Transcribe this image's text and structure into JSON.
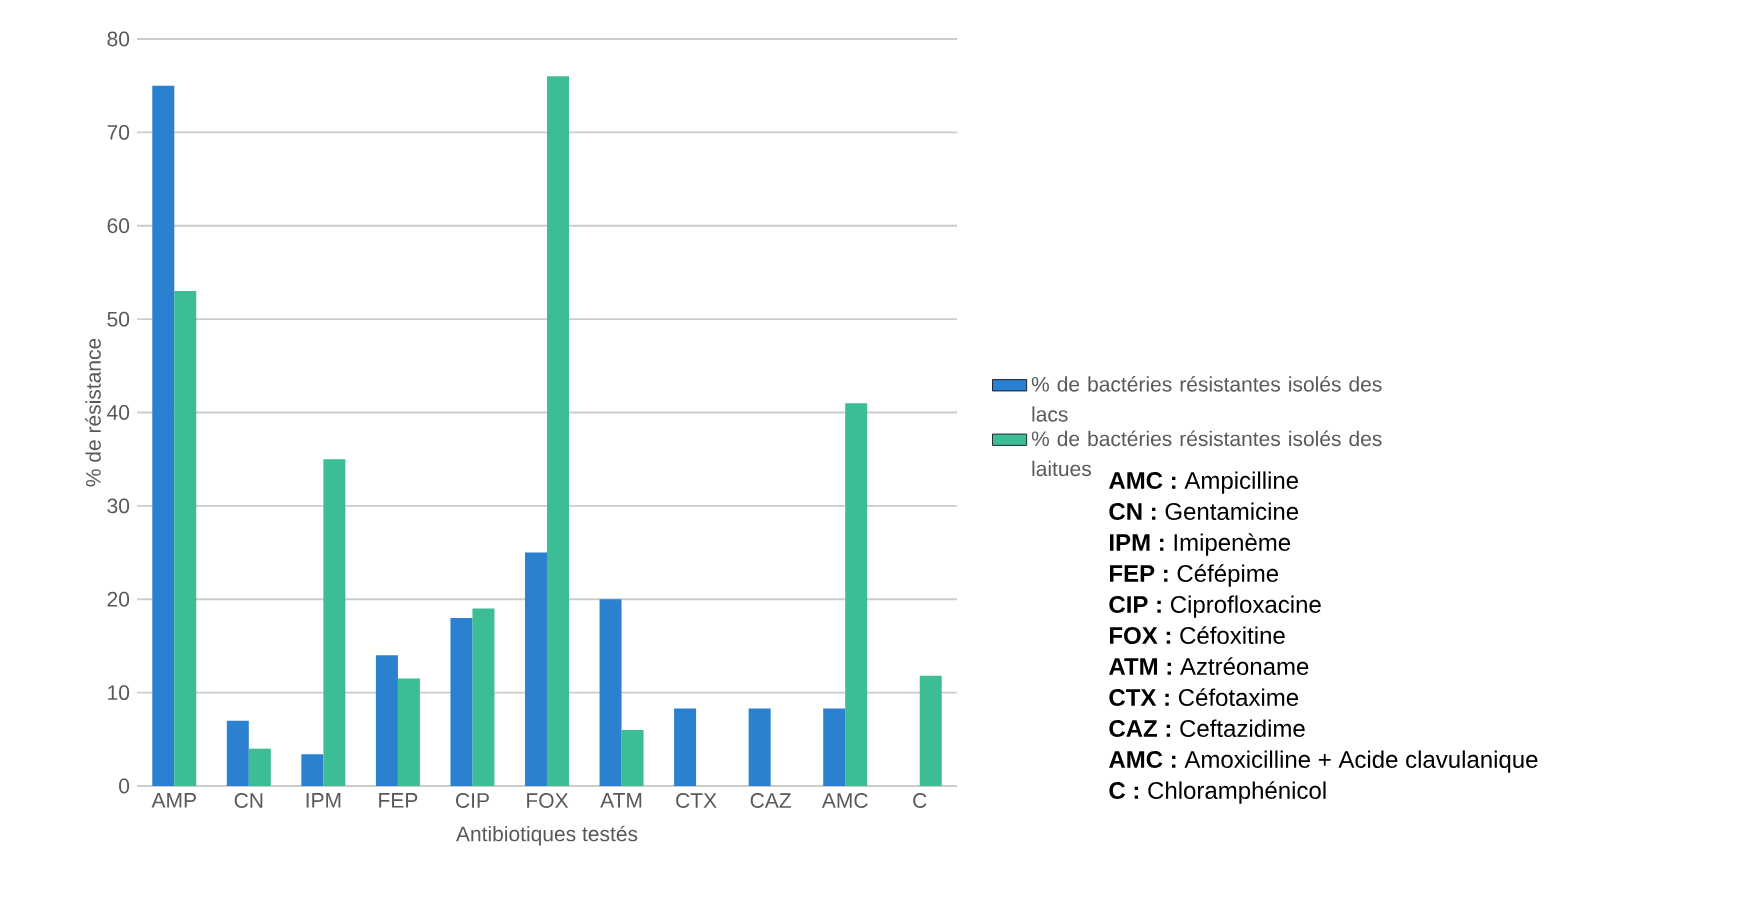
{
  "chart_data": {
    "type": "bar",
    "xlabel": "Antibiotiques testés",
    "ylabel": "% de résistance",
    "categories": [
      "AMP",
      "CN",
      "IPM",
      "FEP",
      "CIP",
      "FOX",
      "ATM",
      "CTX",
      "CAZ",
      "AMC",
      "C"
    ],
    "series": [
      {
        "name": "% de bactéries résistantes isolés des lacs",
        "color": "#2b80d0",
        "values": [
          75,
          7,
          3.4,
          14,
          18,
          25,
          20,
          8.3,
          8.3,
          8.3,
          null
        ]
      },
      {
        "name": "% de bactéries résistantes isolés des laitues",
        "color": "#3dbd96",
        "values": [
          53,
          4,
          35,
          11.5,
          19,
          76,
          6,
          null,
          null,
          41,
          11.8
        ]
      }
    ],
    "ylim": [
      0,
      80
    ],
    "yticks": [
      0,
      10,
      20,
      30,
      40,
      50,
      60,
      70,
      80
    ],
    "grid": "y",
    "legend": "right",
    "annotations": [
      "**AMC :** Ampicilline",
      "**CN :** Gentamicine",
      "**IPM :** Imipenème",
      "**FEP :** Céfépime",
      "**CIP :** Ciprofloxacine",
      "**FOX :** Céfoxitine",
      "**ATM :** Aztréoname",
      "**CTX :** Céfotaxime",
      "**CAZ :** Ceftazidime",
      "**AMC :** Amoxicilline + Acide clavulanique",
      "**C :** Chloramphénicol"
    ]
  }
}
